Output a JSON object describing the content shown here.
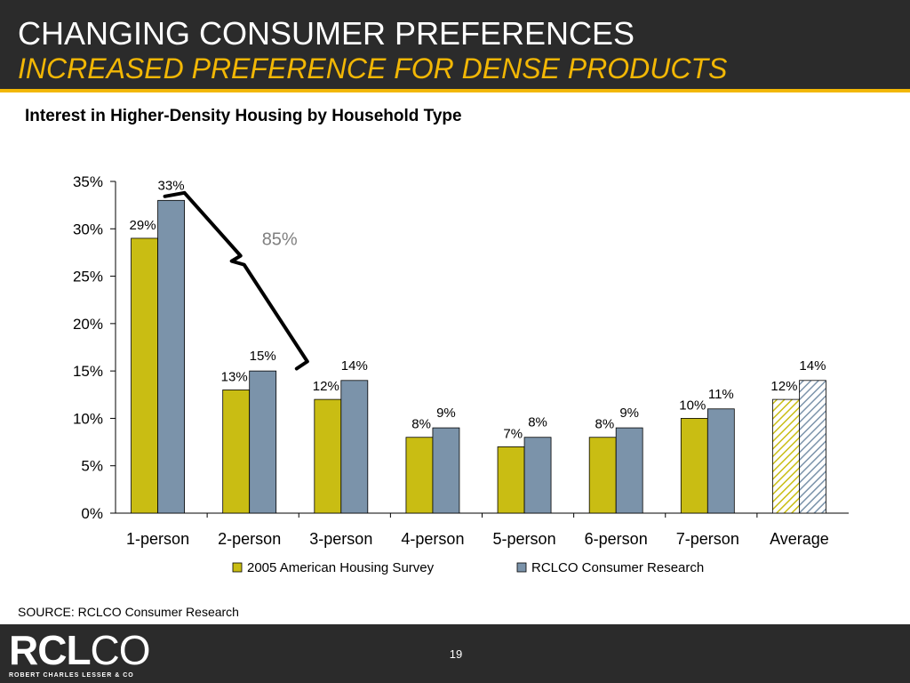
{
  "header": {
    "title": "CHANGING CONSUMER PREFERENCES",
    "subtitle": "INCREASED PREFERENCE FOR DENSE PRODUCTS"
  },
  "chart_heading": "Interest in Higher-Density Housing by Household Type",
  "chart_data": {
    "type": "bar",
    "categories": [
      "1-person",
      "2-person",
      "3-person",
      "4-person",
      "5-person",
      "6-person",
      "7-person",
      "Average"
    ],
    "series": [
      {
        "name": "2005 American Housing Survey",
        "values": [
          29,
          13,
          12,
          8,
          7,
          8,
          10,
          12
        ],
        "color": "#c9bd13"
      },
      {
        "name": "RCLCO Consumer Research",
        "values": [
          33,
          15,
          14,
          9,
          8,
          9,
          11,
          14
        ],
        "color": "#7b93aa"
      }
    ],
    "value_labels": [
      [
        "29%",
        "13%",
        "12%",
        "8%",
        "7%",
        "8%",
        "10%",
        "12%"
      ],
      [
        "33%",
        "15%",
        "14%",
        "9%",
        "8%",
        "9%",
        "11%",
        "14%"
      ]
    ],
    "y_ticks": [
      0,
      5,
      10,
      15,
      20,
      25,
      30,
      35
    ],
    "y_tick_labels": [
      "0%",
      "5%",
      "10%",
      "15%",
      "20%",
      "25%",
      "30%",
      "35%"
    ],
    "ylim": [
      0,
      35
    ],
    "hatched_categories": [
      "Average"
    ],
    "annotation": "85%",
    "annotation_color": "#808080",
    "legend_position": "bottom",
    "grid": false
  },
  "source": "SOURCE: RCLCO Consumer Research",
  "footer": {
    "logo_main_bold": "RCL",
    "logo_main_thin": "CO",
    "logo_tagline": "ROBERT CHARLES LESSER & CO",
    "page_number": "19"
  },
  "colors": {
    "header_bg": "#2b2b2b",
    "accent": "#f2b705"
  }
}
